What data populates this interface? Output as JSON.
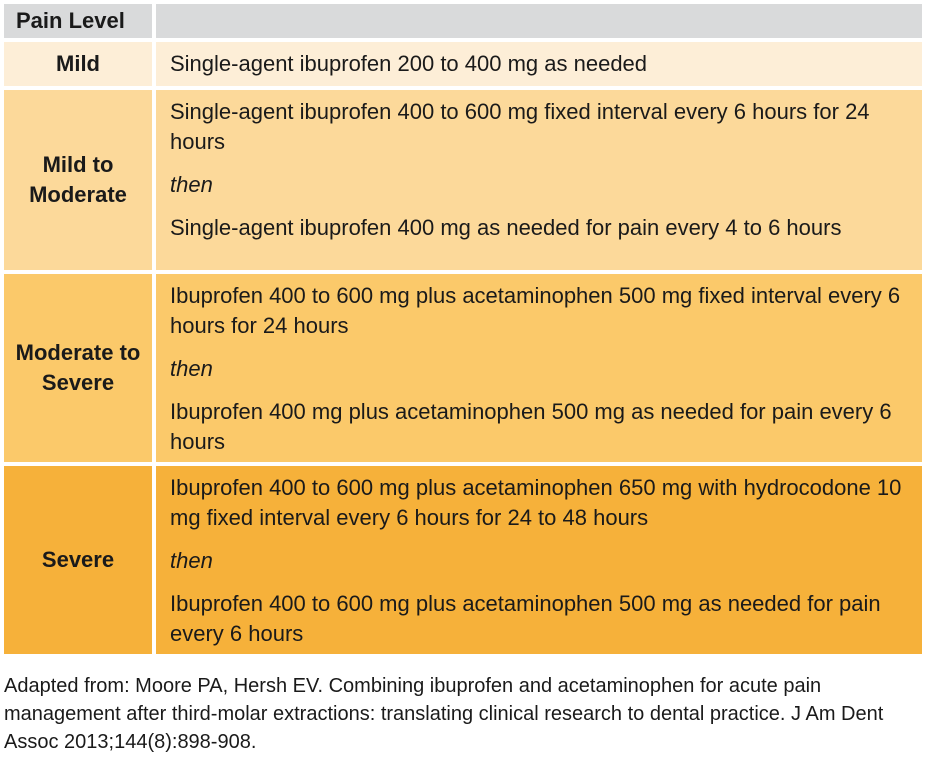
{
  "table": {
    "header": {
      "pain_level_label": "Pain Level",
      "treatment_label": ""
    },
    "rows": [
      {
        "level": "Mild",
        "bg": "#fdeed7",
        "paragraphs": [
          {
            "text": "Single-agent ibuprofen 200 to 400 mg as needed",
            "italic": false
          }
        ]
      },
      {
        "level": "Mild to Moderate",
        "bg": "#fcd99a",
        "paragraphs": [
          {
            "text": "Single-agent ibuprofen 400 to 600 mg fixed interval every 6 hours for 24 hours",
            "italic": false
          },
          {
            "text": "then",
            "italic": true
          },
          {
            "text": "Single-agent ibuprofen 400 mg as needed for pain every 4 to 6 hours",
            "italic": false
          }
        ]
      },
      {
        "level": "Moderate to Severe",
        "bg": "#fbc96a",
        "paragraphs": [
          {
            "text": "Ibuprofen 400 to 600 mg plus acetaminophen 500 mg fixed interval every 6 hours for 24 hours",
            "italic": false
          },
          {
            "text": "then",
            "italic": true
          },
          {
            "text": "Ibuprofen 400 mg plus acetaminophen 500 mg as needed for pain every 6 hours",
            "italic": false
          }
        ]
      },
      {
        "level": "Severe",
        "bg": "#f6b13a",
        "paragraphs": [
          {
            "text": "Ibuprofen 400 to 600 mg plus acetaminophen 650 mg with hydrocodone 10 mg fixed interval every 6 hours for 24 to 48 hours",
            "italic": false
          },
          {
            "text": "then",
            "italic": true
          },
          {
            "text": "Ibuprofen 400 to 600 mg plus acetaminophen 500 mg as needed for pain every 6 hours",
            "italic": false
          }
        ]
      }
    ]
  },
  "footnote": "Adapted from: Moore PA, Hersh EV. Combining ibuprofen and acetaminophen for acute pain management after third-molar extractions: translating clinical research to dental practice. J Am Dent Assoc 2013;144(8):898-908.",
  "colors": {
    "header_bg": "#d9dadb",
    "row_mild_bg": "#fdeed7",
    "row_mild_to_moderate_bg": "#fcd99a",
    "row_moderate_to_severe_bg": "#fbc96a",
    "row_severe_bg": "#f6b13a",
    "text": "#1a1a1a"
  }
}
